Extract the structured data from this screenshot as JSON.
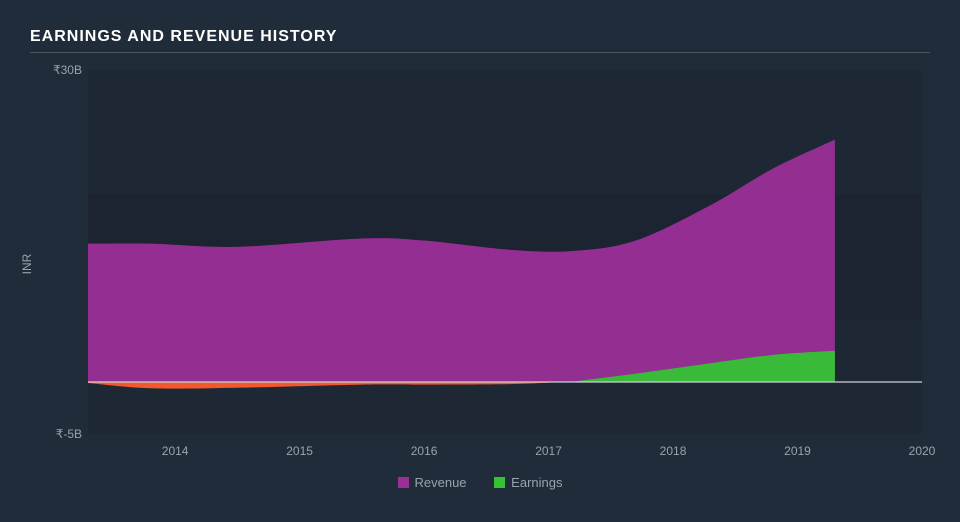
{
  "chart": {
    "type": "area",
    "title": "EARNINGS AND REVENUE HISTORY",
    "background_color": "#212c3a",
    "plot_background_color": "#1e2834",
    "band_color": "#1b2430",
    "rule_color": "#4a5561",
    "baseline_color": "#cdd2d8",
    "text_color": "#9aa3ad",
    "title_color": "#ffffff",
    "title_fontsize": 16,
    "tick_fontsize": 12,
    "legend_fontsize": 13,
    "ylabel": "INR",
    "xlim": [
      2013.3,
      2020
    ],
    "ylim": [
      -5,
      30
    ],
    "yticks": [
      {
        "value": 30,
        "label": "₹30B"
      },
      {
        "value": -5,
        "label": "₹-5B"
      }
    ],
    "xticks": [
      2014,
      2015,
      2016,
      2017,
      2018,
      2019,
      2020
    ],
    "yband": [
      6,
      18
    ],
    "x": [
      2013.3,
      2013.8,
      2014.5,
      2015.5,
      2016.0,
      2016.7,
      2017.2,
      2017.7,
      2018.3,
      2018.8,
      2019.3
    ],
    "series": {
      "revenue": {
        "label": "Revenue",
        "color": "#9b2f98",
        "values": [
          13.3,
          13.3,
          13.0,
          13.8,
          13.6,
          12.7,
          12.6,
          13.6,
          17.0,
          20.5,
          23.3
        ]
      },
      "earnings": {
        "label": "Earnings",
        "color": "#35c235",
        "neg_color": "#ff5a2c",
        "values": [
          -0.1,
          -0.6,
          -0.55,
          -0.25,
          -0.25,
          -0.2,
          0.05,
          0.8,
          1.8,
          2.6,
          3.0
        ]
      }
    }
  }
}
